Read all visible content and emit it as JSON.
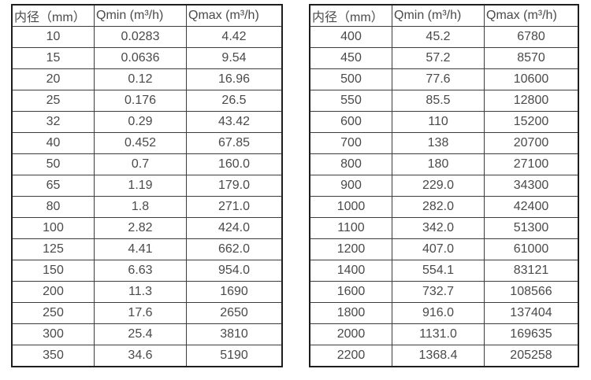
{
  "page": {
    "background_color": "#ffffff",
    "text_color": "#4a4a4a",
    "outer_border_color": "#1e1e1e",
    "inner_border_color": "#3c3c3c"
  },
  "left_table": {
    "headers": [
      "内径（mm）",
      "Qmin (m³/h)",
      "Qmax (m³/h)"
    ],
    "rows": [
      [
        "10",
        "0.0283",
        "4.42"
      ],
      [
        "15",
        "0.0636",
        "9.54"
      ],
      [
        "20",
        "0.12",
        "16.96"
      ],
      [
        "25",
        "0.176",
        "26.5"
      ],
      [
        "32",
        "0.29",
        "43.42"
      ],
      [
        "40",
        "0.452",
        "67.85"
      ],
      [
        "50",
        "0.7",
        "160.0"
      ],
      [
        "65",
        "1.19",
        "179.0"
      ],
      [
        "80",
        "1.8",
        "271.0"
      ],
      [
        "100",
        "2.82",
        "424.0"
      ],
      [
        "125",
        "4.41",
        "662.0"
      ],
      [
        "150",
        "6.63",
        "954.0"
      ],
      [
        "200",
        "11.3",
        "1690"
      ],
      [
        "250",
        "17.6",
        "2650"
      ],
      [
        "300",
        "25.4",
        "3810"
      ],
      [
        "350",
        "34.6",
        "5190"
      ]
    ]
  },
  "right_table": {
    "headers": [
      "内径（mm）",
      "Qmin (m³/h)",
      "Qmax (m³/h)"
    ],
    "rows": [
      [
        "400",
        "45.2",
        "6780"
      ],
      [
        "450",
        "57.2",
        "8570"
      ],
      [
        "500",
        "77.6",
        "10600"
      ],
      [
        "550",
        "85.5",
        "12800"
      ],
      [
        "600",
        "110",
        "15200"
      ],
      [
        "700",
        "138",
        "20700"
      ],
      [
        "800",
        "180",
        "27100"
      ],
      [
        "900",
        "229.0",
        "34300"
      ],
      [
        "1000",
        "282.0",
        "42400"
      ],
      [
        "1100",
        "342.0",
        "51300"
      ],
      [
        "1200",
        "407.0",
        "61000"
      ],
      [
        "1400",
        "554.1",
        "83121"
      ],
      [
        "1600",
        "732.7",
        "108566"
      ],
      [
        "1800",
        "916.0",
        "137404"
      ],
      [
        "2000",
        "1131.0",
        "169635"
      ],
      [
        "2200",
        "1368.4",
        "205258"
      ]
    ]
  }
}
